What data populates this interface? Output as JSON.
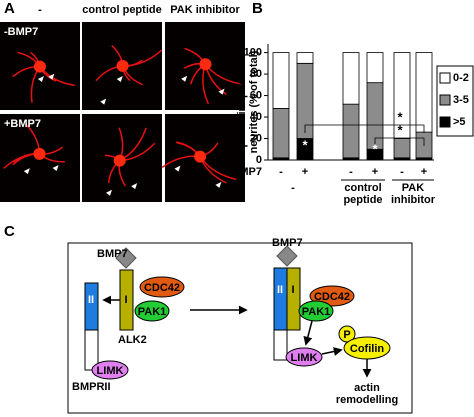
{
  "panel_labels": [
    "A",
    "B",
    "C"
  ],
  "panel_a": {
    "columns": [
      "-",
      "control peptide",
      "PAK inhibitor"
    ],
    "rows": [
      "-BMP7",
      "+BMP7"
    ]
  },
  "chart_data": {
    "type": "bar",
    "stacked": true,
    "ylabel": "p-cofilin- positive neurites (% of total)",
    "xlabel": "BMP7",
    "categories": [
      "-",
      "+",
      "-",
      "+",
      "-",
      "+"
    ],
    "groups": [
      "-",
      "control peptide",
      "PAK inhibitor"
    ],
    "series": [
      {
        "name": "0-2",
        "color": "#ffffff",
        "values": [
          52,
          10,
          48,
          28,
          80,
          74
        ]
      },
      {
        "name": "3-5",
        "color": "#8c8c8c",
        "values": [
          46,
          70,
          50,
          62,
          18,
          24
        ]
      },
      {
        "name": ">5",
        "color": "#000000",
        "values": [
          2,
          20,
          2,
          10,
          2,
          2
        ]
      }
    ],
    "ylim": [
      0,
      108
    ],
    "yticks": [
      0,
      20,
      40,
      60,
      80,
      100
    ],
    "annotations": [
      "*",
      "*",
      "*",
      "*"
    ]
  },
  "diagram": {
    "nodes": [
      {
        "label": "BMP7"
      },
      {
        "label": "II"
      },
      {
        "label": "I"
      },
      {
        "label": "CDC42"
      },
      {
        "label": "PAK1"
      },
      {
        "label": "ALK2"
      },
      {
        "label": "LIMK"
      },
      {
        "label": "BMPRII"
      },
      {
        "label": "BMP7"
      },
      {
        "label": "II"
      },
      {
        "label": "I"
      },
      {
        "label": "CDC42"
      },
      {
        "label": "PAK1"
      },
      {
        "label": "LIMK"
      },
      {
        "label": "P"
      },
      {
        "label": "Cofilin"
      },
      {
        "label": "actin remodelling"
      }
    ]
  }
}
